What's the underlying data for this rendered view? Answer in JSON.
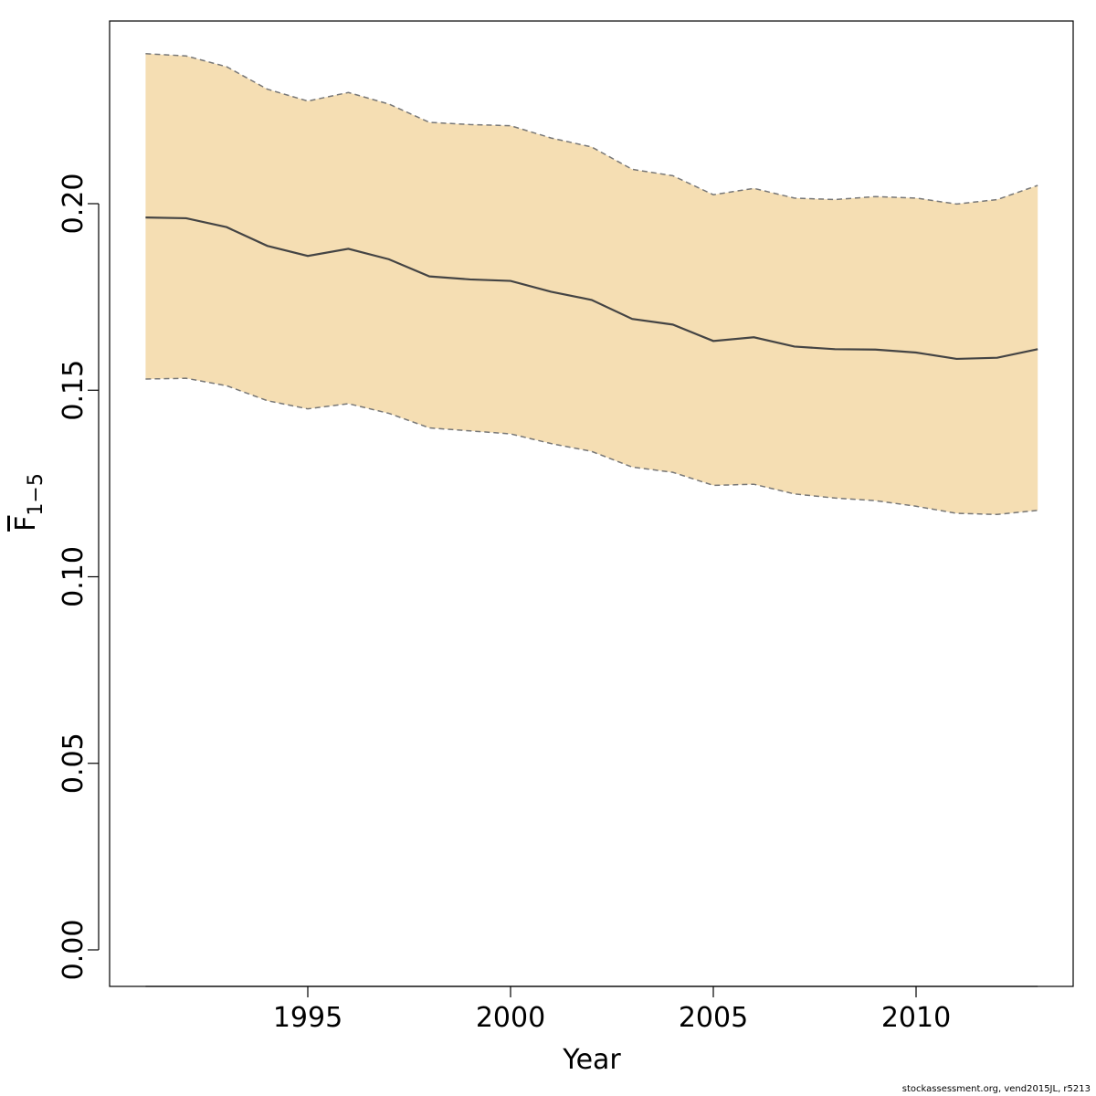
{
  "colors": {
    "band_fill": "#F5DEB3",
    "bound_line": "#777777",
    "estimate_line": "#444444",
    "axis": "#000000"
  },
  "footer": {
    "note": "stockassessment.org, vend2015JL, r5213"
  },
  "chart_data": {
    "type": "line",
    "xlabel": "Year",
    "ylabel": "F",
    "ylabel_subscript": "1−5",
    "ylim": [
      0,
      0.25
    ],
    "xlim": [
      1991,
      2013
    ],
    "x_ticks": [
      "1995",
      "2000",
      "2005",
      "2010"
    ],
    "y_ticks": [
      "0.00",
      "0.05",
      "0.10",
      "0.15",
      "0.20"
    ],
    "grid": false,
    "x": [
      1991,
      1992,
      1993,
      1994,
      1995,
      1996,
      1997,
      1998,
      1999,
      2000,
      2001,
      2002,
      2003,
      2004,
      2005,
      2006,
      2007,
      2008,
      2009,
      2010,
      2011,
      2012,
      2013
    ],
    "series": [
      {
        "role": "estimate",
        "style": "solid",
        "values": [
          0.1963,
          0.1961,
          0.1937,
          0.1887,
          0.186,
          0.1879,
          0.1851,
          0.1805,
          0.1797,
          0.1793,
          0.1764,
          0.1742,
          0.1691,
          0.1676,
          0.1632,
          0.1642,
          0.1617,
          0.161,
          0.1609,
          0.1601,
          0.1584,
          0.1587,
          0.161
        ]
      },
      {
        "role": "upper",
        "style": "dashed",
        "values": [
          0.2402,
          0.2396,
          0.2367,
          0.2307,
          0.2275,
          0.2298,
          0.2267,
          0.2218,
          0.2212,
          0.2209,
          0.2176,
          0.2152,
          0.2092,
          0.2075,
          0.2024,
          0.2041,
          0.2015,
          0.2011,
          0.2019,
          0.2015,
          0.1999,
          0.2011,
          0.2049
        ]
      },
      {
        "role": "lower",
        "style": "dashed",
        "values": [
          0.153,
          0.1532,
          0.1512,
          0.1472,
          0.145,
          0.1464,
          0.1438,
          0.1399,
          0.1391,
          0.1383,
          0.1357,
          0.1336,
          0.1294,
          0.128,
          0.1245,
          0.1248,
          0.1222,
          0.1211,
          0.1204,
          0.1189,
          0.117,
          0.1167,
          0.1178
        ]
      }
    ]
  }
}
